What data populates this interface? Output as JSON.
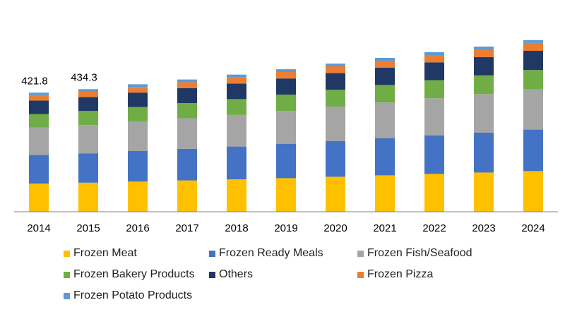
{
  "chart_data": {
    "type": "bar",
    "stacked": true,
    "categories": [
      "2014",
      "2015",
      "2016",
      "2017",
      "2018",
      "2019",
      "2020",
      "2021",
      "2022",
      "2023",
      "2024"
    ],
    "series": [
      {
        "name": "Frozen Meat",
        "color": "#FFC000",
        "values": [
          100,
          103,
          107,
          111,
          115,
          119,
          124,
          129,
          134,
          139,
          144
        ]
      },
      {
        "name": "Frozen Ready Meals",
        "color": "#4472C4",
        "values": [
          101,
          104,
          108,
          112,
          116,
          121,
          126,
          131,
          136,
          141,
          147
        ]
      },
      {
        "name": "Frozen Fish/Seafood",
        "color": "#A5A5A5",
        "values": [
          97,
          100,
          104,
          108,
          112,
          117,
          122,
          127,
          132,
          137,
          143
        ]
      },
      {
        "name": "Frozen Bakery Products",
        "color": "#70AD47",
        "values": [
          48,
          50,
          52,
          54,
          56,
          58,
          60,
          62,
          64,
          66,
          68
        ]
      },
      {
        "name": "Others",
        "color": "#203864",
        "values": [
          48,
          49,
          51,
          53,
          55,
          57,
          59,
          61,
          63,
          65,
          68
        ]
      },
      {
        "name": "Frozen Pizza",
        "color": "#ED7D31",
        "values": [
          19,
          19,
          20,
          21,
          22,
          23,
          24,
          25,
          26,
          27,
          28
        ]
      },
      {
        "name": "Frozen Potato Products",
        "color": "#5B9BD5",
        "values": [
          8.8,
          9.3,
          9.5,
          9.6,
          9.7,
          9.8,
          9.8,
          9.9,
          10,
          10,
          10
        ]
      }
    ],
    "totals": [
      421.8,
      434.3,
      452,
      469,
      486,
      505,
      525,
      545,
      565,
      585,
      608
    ],
    "data_labels": [
      "421.8",
      "434.3",
      "",
      "",
      "",
      "",
      "",
      "",
      "",
      "",
      ""
    ],
    "ylim": [
      0,
      650
    ],
    "legend_position": "bottom",
    "grid": false
  }
}
